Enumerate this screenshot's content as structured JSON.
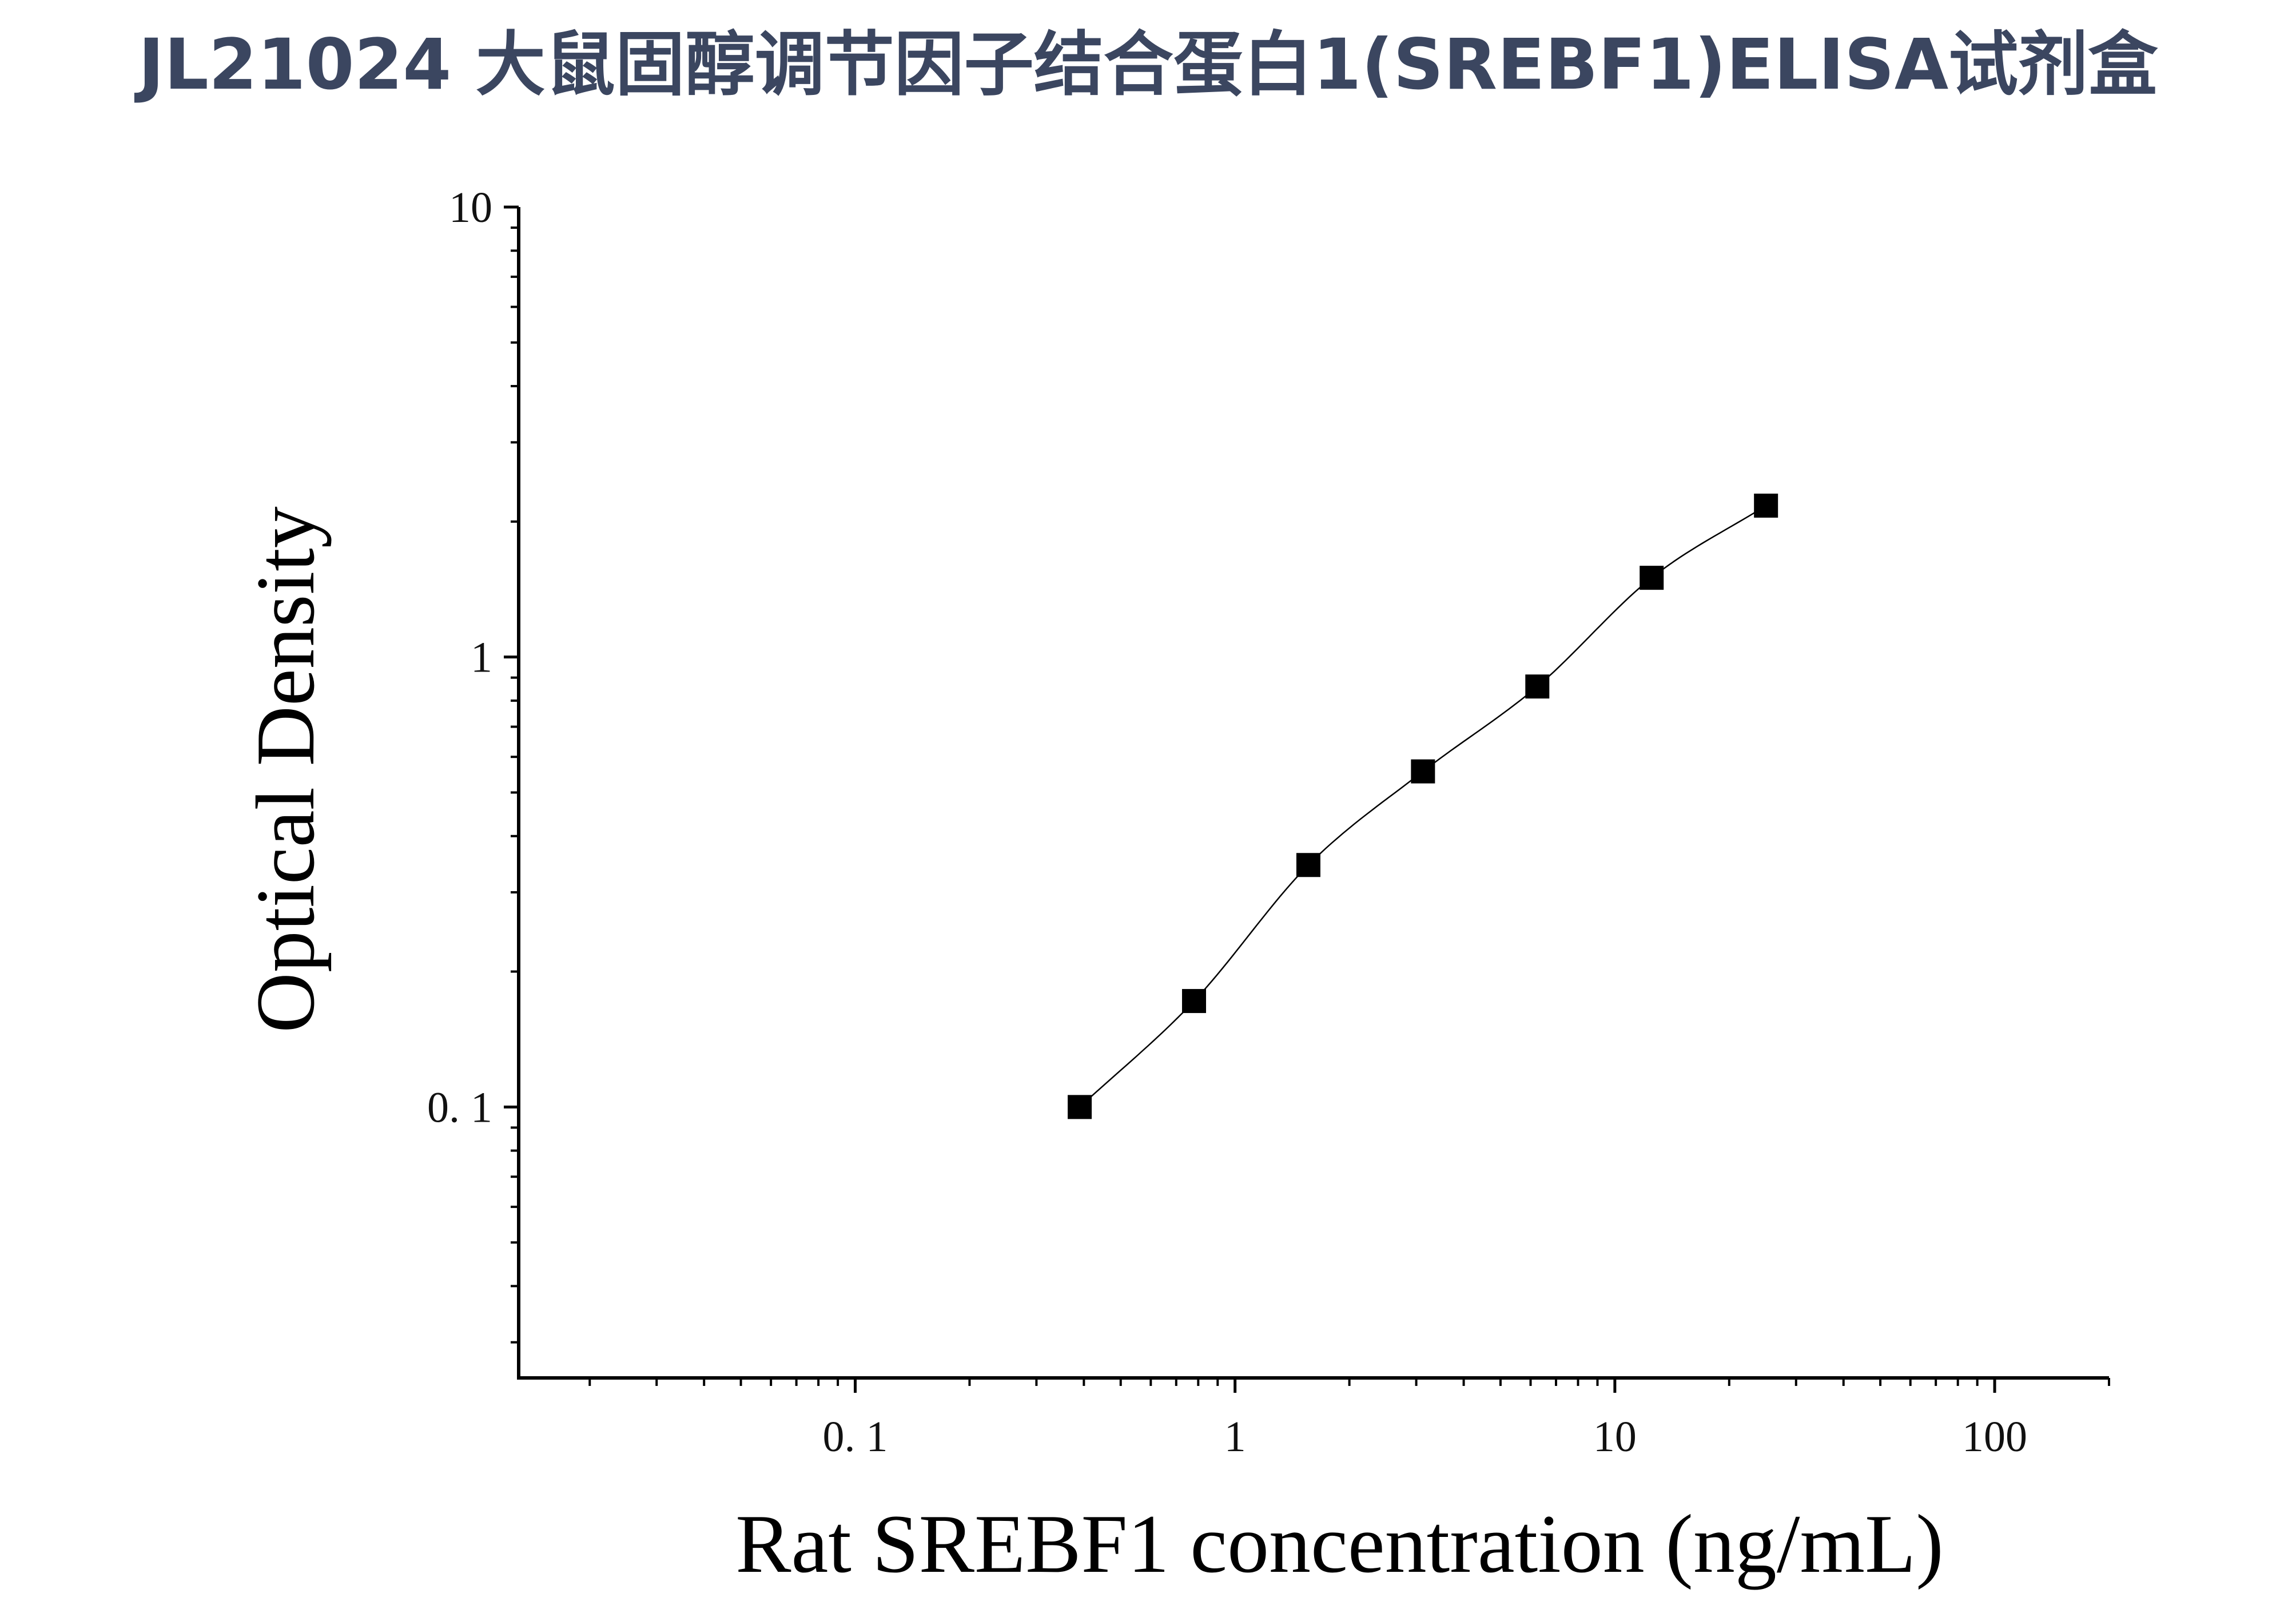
{
  "title": "JL21024 大鼠固醇调节因子结合蛋白1(SREBF1)ELISA试剂盒",
  "chart_data": {
    "type": "scatter",
    "xlabel": "Rat SREBF1 concentration (ng/mL)",
    "ylabel": "Optical Density",
    "xscale": "log",
    "yscale": "log",
    "xlim": [
      0.013,
      200
    ],
    "ylim": [
      0.025,
      10
    ],
    "x_ticks": [
      {
        "value": 0.1,
        "label": "0. 1"
      },
      {
        "value": 1,
        "label": "1"
      },
      {
        "value": 10,
        "label": "10"
      },
      {
        "value": 100,
        "label": "100"
      }
    ],
    "y_ticks": [
      {
        "value": 0.1,
        "label": "0. 1"
      },
      {
        "value": 1,
        "label": "1"
      },
      {
        "value": 10,
        "label": "10"
      }
    ],
    "grid": false,
    "marker": "square",
    "series": [
      {
        "x": [
          0.39,
          0.78,
          1.56,
          3.125,
          6.25,
          12.5,
          25
        ],
        "y": [
          0.1,
          0.172,
          0.345,
          0.557,
          0.86,
          1.5,
          2.17
        ]
      }
    ],
    "fit_line": true,
    "colors": {
      "marker": "#000000",
      "line": "#000000",
      "axis": "#000000"
    }
  }
}
